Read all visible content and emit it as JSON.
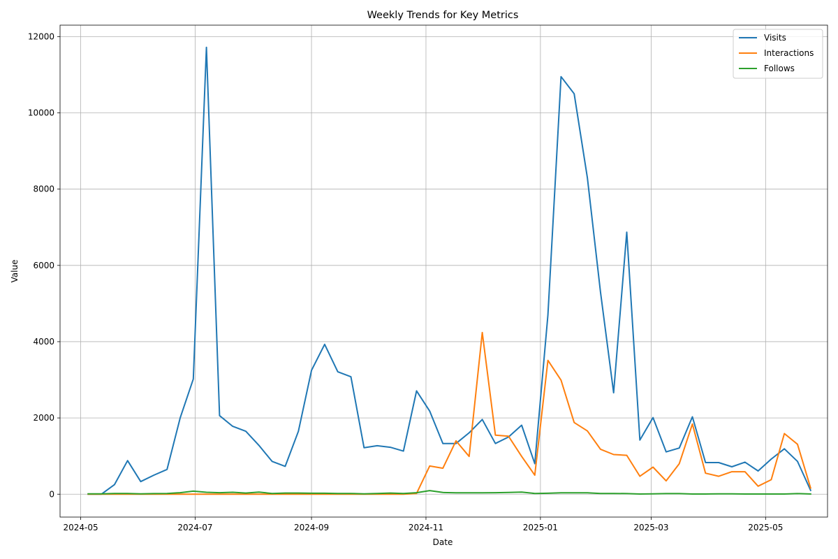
{
  "chart_data": {
    "type": "line",
    "title": "Weekly Trends for Key Metrics",
    "xlabel": "Date",
    "ylabel": "Value",
    "ylim": [
      -600,
      12300
    ],
    "xlim": [
      "2024-04-20",
      "2025-06-03"
    ],
    "grid": true,
    "legend_position": "top-right",
    "x_ticks": [
      "2024-05-01",
      "2024-07-01",
      "2024-09-01",
      "2024-11-01",
      "2025-01-01",
      "2025-03-01",
      "2025-05-01"
    ],
    "x_tick_labels": [
      "2024-05",
      "2024-07",
      "2024-09",
      "2024-11",
      "2025-01",
      "2025-03",
      "2025-05"
    ],
    "y_ticks": [
      0,
      2000,
      4000,
      6000,
      8000,
      10000,
      12000
    ],
    "y_tick_labels": [
      "0",
      "2000",
      "4000",
      "6000",
      "8000",
      "10000",
      "12000"
    ],
    "x": [
      "2024-05-05",
      "2024-05-12",
      "2024-05-19",
      "2024-05-26",
      "2024-06-02",
      "2024-06-09",
      "2024-06-16",
      "2024-06-23",
      "2024-06-30",
      "2024-07-07",
      "2024-07-14",
      "2024-07-21",
      "2024-07-28",
      "2024-08-04",
      "2024-08-11",
      "2024-08-18",
      "2024-08-25",
      "2024-09-01",
      "2024-09-08",
      "2024-09-15",
      "2024-09-22",
      "2024-09-29",
      "2024-10-06",
      "2024-10-13",
      "2024-10-20",
      "2024-10-27",
      "2024-11-03",
      "2024-11-10",
      "2024-11-17",
      "2024-11-24",
      "2024-12-01",
      "2024-12-08",
      "2024-12-15",
      "2024-12-22",
      "2024-12-29",
      "2025-01-05",
      "2025-01-12",
      "2025-01-19",
      "2025-01-26",
      "2025-02-02",
      "2025-02-09",
      "2025-02-16",
      "2025-02-23",
      "2025-03-02",
      "2025-03-09",
      "2025-03-16",
      "2025-03-23",
      "2025-03-30",
      "2025-04-06",
      "2025-04-13",
      "2025-04-20",
      "2025-04-27",
      "2025-05-04",
      "2025-05-11",
      "2025-05-18",
      "2025-05-25"
    ],
    "series": [
      {
        "name": "Visits",
        "color": "#1f77b4",
        "values": [
          0,
          0,
          250,
          880,
          330,
          500,
          650,
          2000,
          3020,
          11720,
          2060,
          1780,
          1650,
          1280,
          860,
          730,
          1650,
          3250,
          3930,
          3210,
          3080,
          1220,
          1270,
          1230,
          1130,
          2710,
          2180,
          1330,
          1330,
          1610,
          1960,
          1330,
          1500,
          1810,
          800,
          4700,
          10950,
          10500,
          8300,
          5300,
          2660,
          6870,
          1420,
          2010,
          1110,
          1210,
          2030,
          830,
          830,
          720,
          840,
          610,
          920,
          1190,
          860,
          100
        ]
      },
      {
        "name": "Interactions",
        "color": "#ff7f0e",
        "values": [
          0,
          0,
          0,
          0,
          0,
          0,
          0,
          0,
          0,
          0,
          0,
          0,
          0,
          0,
          0,
          0,
          0,
          0,
          0,
          0,
          0,
          0,
          0,
          0,
          0,
          20,
          740,
          680,
          1400,
          990,
          4240,
          1550,
          1520,
          990,
          500,
          3510,
          2990,
          1880,
          1660,
          1180,
          1040,
          1020,
          470,
          710,
          350,
          800,
          1840,
          550,
          470,
          590,
          590,
          210,
          380,
          1590,
          1310,
          160
        ]
      },
      {
        "name": "Follows",
        "color": "#2ca02c",
        "values": [
          10,
          10,
          20,
          20,
          10,
          15,
          20,
          40,
          80,
          50,
          40,
          50,
          30,
          55,
          20,
          30,
          30,
          25,
          25,
          20,
          20,
          10,
          20,
          30,
          20,
          40,
          95,
          45,
          35,
          35,
          35,
          40,
          45,
          55,
          20,
          25,
          35,
          35,
          35,
          20,
          20,
          15,
          5,
          10,
          15,
          15,
          5,
          5,
          10,
          10,
          5,
          5,
          5,
          5,
          15,
          5
        ]
      }
    ]
  }
}
